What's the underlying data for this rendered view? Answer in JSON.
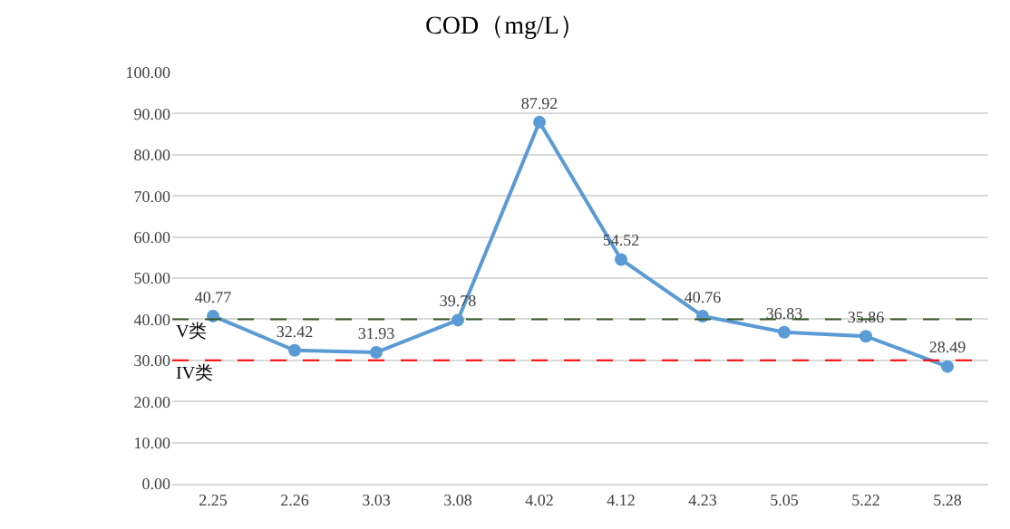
{
  "chart_data": {
    "type": "line",
    "title": "COD（mg/L）",
    "categories": [
      "2.25",
      "2.26",
      "3.03",
      "3.08",
      "4.02",
      "4.12",
      "4.23",
      "5.05",
      "5.22",
      "5.28"
    ],
    "series": [
      {
        "color": "#5b9bd5",
        "values": [
          40.77,
          32.42,
          31.93,
          39.78,
          87.92,
          54.52,
          40.76,
          36.83,
          35.86,
          28.49
        ]
      }
    ],
    "ylim": [
      0,
      100
    ],
    "yticks": [
      {
        "value": 0,
        "label": "0.00"
      },
      {
        "value": 10,
        "label": "10.00"
      },
      {
        "value": 20,
        "label": "20.00"
      },
      {
        "value": 30,
        "label": "30.00"
      },
      {
        "value": 40,
        "label": "40.00"
      },
      {
        "value": 50,
        "label": "50.00"
      },
      {
        "value": 60,
        "label": "60.00"
      },
      {
        "value": 70,
        "label": "70.00"
      },
      {
        "value": 80,
        "label": "80.00"
      },
      {
        "value": 90,
        "label": "90.00"
      },
      {
        "value": 100,
        "label": "100.00"
      }
    ],
    "ref_lines": [
      {
        "axis": "y",
        "value": 40,
        "label": "V类",
        "color": "#375623",
        "line_style": "dashed"
      },
      {
        "axis": "y",
        "value": 30,
        "label": "IV类",
        "color": "#ff0000",
        "line_style": "dashed"
      }
    ],
    "grid": "y",
    "marker": "circle",
    "line_style": "solid",
    "data_labels": true,
    "legend": false
  }
}
